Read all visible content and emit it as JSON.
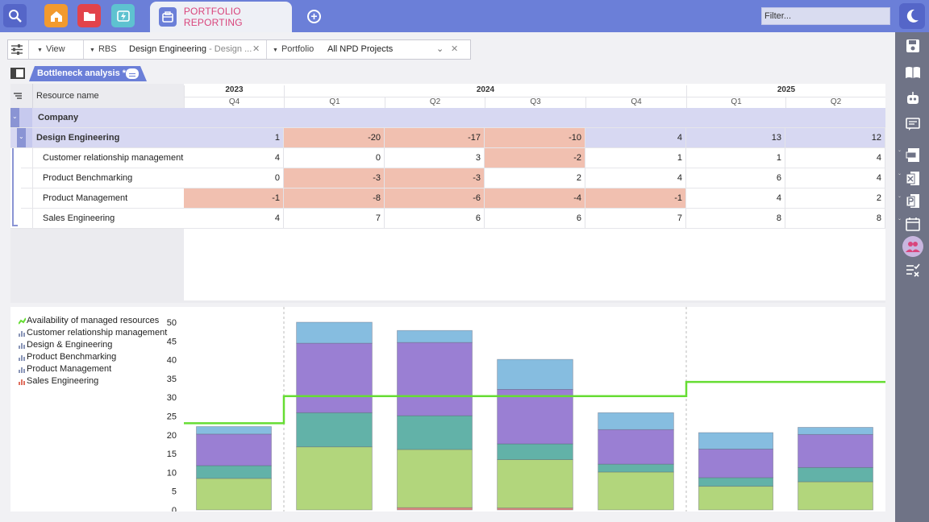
{
  "topbar": {
    "tab_label": "PORTFOLIO REPORTING",
    "filter_placeholder": "Filter..."
  },
  "toolbar": {
    "view_label": "View",
    "rbs_label": "RBS",
    "rbs_value": "Design Engineering",
    "rbs_value_suffix": "- Design ...",
    "portfolio_label": "Portfolio",
    "portfolio_value": "All NPD Projects"
  },
  "view_tab": {
    "label": "Bottleneck analysis *"
  },
  "grid": {
    "resource_header": "Resource name",
    "years": [
      {
        "label": "2023"
      },
      {
        "label": "2024"
      },
      {
        "label": "2025"
      }
    ],
    "quarters": [
      "Q4",
      "Q1",
      "Q2",
      "Q3",
      "Q4",
      "Q1",
      "Q2"
    ],
    "group_row": {
      "label": "Company"
    },
    "subgroup_row": {
      "label": "Design Engineering",
      "values": [
        "1",
        "-20",
        "-17",
        "-10",
        "4",
        "13",
        "12"
      ]
    },
    "rows": [
      {
        "label": "Customer relationship management",
        "values": [
          "4",
          "0",
          "3",
          "-2",
          "1",
          "1",
          "4"
        ]
      },
      {
        "label": "Product Benchmarking",
        "values": [
          "0",
          "-3",
          "-3",
          "2",
          "4",
          "6",
          "4"
        ]
      },
      {
        "label": "Product Management",
        "values": [
          "-1",
          "-8",
          "-6",
          "-4",
          "-1",
          "4",
          "2"
        ]
      },
      {
        "label": "Sales Engineering",
        "values": [
          "4",
          "7",
          "6",
          "6",
          "7",
          "8",
          "8"
        ]
      }
    ]
  },
  "chart_data": {
    "type": "bar",
    "stacked": true,
    "categories": [
      "2023 Q4",
      "2024 Q1",
      "2024 Q2",
      "2024 Q3",
      "2024 Q4",
      "2025 Q1",
      "2025 Q2"
    ],
    "ylim": [
      0,
      50
    ],
    "yticks": [
      "0",
      "5",
      "10",
      "15",
      "20",
      "25",
      "30",
      "35",
      "40",
      "45",
      "50"
    ],
    "legend": [
      {
        "name": "Availability of managed resources",
        "color": "#66dd33"
      },
      {
        "name": "Customer relationship management",
        "color": "#8a96b8"
      },
      {
        "name": "Design & Engineering",
        "color": "#8a96b8"
      },
      {
        "name": "Product Benchmarking",
        "color": "#8a96b8"
      },
      {
        "name": "Product Management",
        "color": "#8a96b8"
      },
      {
        "name": "Sales Engineering",
        "color": "#e07060"
      }
    ],
    "series": [
      {
        "name": "Sales Engineering",
        "color": "#e08a80",
        "values": [
          0,
          0,
          0.6,
          0.5,
          0,
          0,
          0
        ]
      },
      {
        "name": "Product Management",
        "color": "#b2d67c",
        "values": [
          8.4,
          16.8,
          15.5,
          12.9,
          10.1,
          6.3,
          7.5
        ]
      },
      {
        "name": "Product Benchmarking",
        "color": "#62b2a8",
        "values": [
          3.4,
          9.1,
          9.0,
          4.2,
          2.1,
          2.3,
          3.8
        ]
      },
      {
        "name": "Design & Engineering",
        "color": "#9a7fd3",
        "values": [
          8.4,
          18.5,
          19.5,
          14.5,
          9.2,
          7.6,
          8.8
        ]
      },
      {
        "name": "Customer relationship management",
        "color": "#86bde0",
        "values": [
          2.0,
          5.6,
          3.2,
          8.0,
          4.5,
          4.4,
          1.9
        ]
      }
    ],
    "availability_line": {
      "name": "Availability of managed resources",
      "color": "#66dd33",
      "values": [
        23.1,
        30.3,
        30.3,
        30.3,
        30.3,
        34.1,
        34.1
      ]
    }
  }
}
